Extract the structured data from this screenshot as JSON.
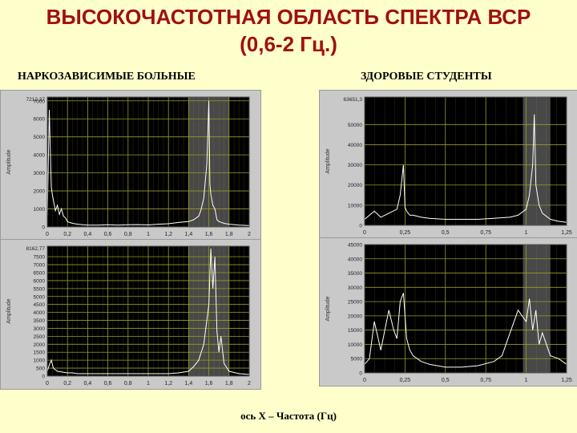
{
  "title": {
    "line1": "ВЫСОКОЧАСТОТНАЯ ОБЛАСТЬ СПЕКТРА ВСР",
    "line2": "(0,6-2 Гц.)"
  },
  "left_heading": "НАРКОЗАВИСИМЫЕ БОЛЬНЫЕ",
  "right_heading": "ЗДОРОВЫЕ СТУДЕНТЫ",
  "footer": "ось X – Частота (Гц)",
  "colors": {
    "title": "#a01010",
    "background": "#ffffcc",
    "plot_bg": "#000000",
    "grid": "#9a9a2a",
    "line": "#ffffff",
    "highlight": "#555555"
  },
  "chart_data": [
    {
      "type": "line",
      "ylabel": "Amplitude",
      "top_label": "7212,37",
      "xlim": [
        0,
        2
      ],
      "ylim": [
        0,
        7212.37
      ],
      "xticks": [
        "0",
        "0,2",
        "0,4",
        "0,6",
        "0,8",
        "1",
        "1,2",
        "1,4",
        "1,6",
        "1,8",
        "2"
      ],
      "yticks": [
        "0",
        "1000",
        "2000",
        "3000",
        "4000",
        "5000",
        "6000",
        "7000"
      ],
      "ytick_values": [
        0,
        1000,
        2000,
        3000,
        4000,
        5000,
        6000,
        7000
      ],
      "highlight": [
        1.4,
        1.8
      ],
      "series": [
        {
          "x": [
            0,
            0.02,
            0.04,
            0.05,
            0.06,
            0.08,
            0.1,
            0.12,
            0.14,
            0.16,
            0.18,
            0.2,
            0.22,
            0.25,
            0.3,
            0.35,
            0.4,
            0.5,
            0.6,
            0.7,
            0.8,
            0.9,
            1.0,
            1.1,
            1.2,
            1.3,
            1.4,
            1.45,
            1.5,
            1.52,
            1.55,
            1.58,
            1.6,
            1.61,
            1.62,
            1.64,
            1.66,
            1.68,
            1.7,
            1.75,
            1.8,
            1.9,
            2.0
          ],
          "y": [
            500,
            6500,
            2200,
            1800,
            1500,
            900,
            1200,
            700,
            1000,
            600,
            500,
            300,
            250,
            200,
            150,
            120,
            100,
            100,
            120,
            100,
            120,
            130,
            110,
            150,
            180,
            250,
            300,
            400,
            600,
            900,
            1600,
            3500,
            7000,
            2400,
            1800,
            1200,
            1000,
            400,
            300,
            200,
            150,
            100,
            80
          ]
        }
      ]
    },
    {
      "type": "line",
      "ylabel": "Amplitude",
      "top_label": "8162,77",
      "xlim": [
        0,
        2
      ],
      "ylim": [
        0,
        8162.77
      ],
      "xticks": [
        "0",
        "0,2",
        "0,4",
        "0,6",
        "0,8",
        "1",
        "1,2",
        "1,4",
        "1,6",
        "1,8",
        "2"
      ],
      "yticks": [
        "0",
        "500",
        "1000",
        "1500",
        "2000",
        "2500",
        "3000",
        "3500",
        "4000",
        "4500",
        "5000",
        "5500",
        "6000",
        "6500",
        "7000",
        "7500"
      ],
      "ytick_values": [
        0,
        500,
        1000,
        1500,
        2000,
        2500,
        3000,
        3500,
        4000,
        4500,
        5000,
        5500,
        6000,
        6500,
        7000,
        7500
      ],
      "highlight": [
        1.4,
        1.8
      ],
      "series": [
        {
          "x": [
            0,
            0.02,
            0.04,
            0.06,
            0.08,
            0.1,
            0.15,
            0.2,
            0.25,
            0.3,
            0.4,
            0.5,
            0.6,
            0.7,
            0.8,
            0.9,
            1.0,
            1.1,
            1.2,
            1.3,
            1.4,
            1.45,
            1.5,
            1.55,
            1.58,
            1.6,
            1.62,
            1.64,
            1.66,
            1.68,
            1.7,
            1.72,
            1.75,
            1.8,
            1.9,
            2.0
          ],
          "y": [
            300,
            700,
            1000,
            500,
            400,
            300,
            250,
            200,
            200,
            150,
            150,
            150,
            150,
            150,
            150,
            150,
            150,
            150,
            150,
            200,
            300,
            600,
            1000,
            2000,
            3500,
            4500,
            8000,
            5500,
            7500,
            2800,
            1500,
            2500,
            800,
            300,
            150,
            100
          ]
        }
      ]
    },
    {
      "type": "line",
      "ylabel": "Amplitude",
      "top_label": "63651,3",
      "xlim": [
        0,
        1.25
      ],
      "ylim": [
        0,
        63651.3
      ],
      "xticks": [
        "0",
        "0,25",
        "0,5",
        "0,75",
        "1",
        "1,25"
      ],
      "yticks": [
        "0",
        "10000",
        "20000",
        "30000",
        "40000",
        "50000"
      ],
      "ytick_values": [
        0,
        10000,
        20000,
        30000,
        40000,
        50000
      ],
      "highlight": [
        0.98,
        1.15
      ],
      "series": [
        {
          "x": [
            0,
            0.03,
            0.06,
            0.1,
            0.15,
            0.2,
            0.22,
            0.24,
            0.25,
            0.26,
            0.28,
            0.3,
            0.35,
            0.4,
            0.5,
            0.6,
            0.7,
            0.8,
            0.9,
            0.95,
            1.0,
            1.02,
            1.04,
            1.05,
            1.06,
            1.08,
            1.1,
            1.15,
            1.2,
            1.25
          ],
          "y": [
            3000,
            5000,
            7000,
            4000,
            6000,
            8000,
            15000,
            30000,
            9000,
            7000,
            5000,
            5000,
            4000,
            3500,
            3000,
            3000,
            3000,
            3500,
            4000,
            5000,
            8000,
            15000,
            30000,
            55000,
            20000,
            10000,
            6000,
            3000,
            2000,
            1500
          ]
        }
      ]
    },
    {
      "type": "line",
      "ylabel": "Amplitude",
      "top_label": "",
      "xlim": [
        0,
        1.25
      ],
      "ylim": [
        0,
        45000
      ],
      "xticks": [
        "0",
        "0,25",
        "0,5",
        "0,75",
        "1",
        "1,25"
      ],
      "yticks": [
        "0",
        "5000",
        "10000",
        "15000",
        "20000",
        "25000",
        "30000",
        "35000",
        "40000",
        "45000"
      ],
      "ytick_values": [
        0,
        5000,
        10000,
        15000,
        20000,
        25000,
        30000,
        35000,
        40000,
        45000
      ],
      "highlight": [
        0.98,
        1.15
      ],
      "series": [
        {
          "x": [
            0,
            0.03,
            0.06,
            0.1,
            0.15,
            0.18,
            0.2,
            0.22,
            0.24,
            0.26,
            0.28,
            0.3,
            0.35,
            0.4,
            0.5,
            0.6,
            0.7,
            0.8,
            0.85,
            0.9,
            0.95,
            1.0,
            1.02,
            1.04,
            1.06,
            1.08,
            1.1,
            1.15,
            1.2,
            1.25
          ],
          "y": [
            3000,
            5000,
            18000,
            8000,
            22000,
            15000,
            12000,
            25000,
            28000,
            12000,
            8000,
            6000,
            4000,
            3000,
            2000,
            2000,
            2500,
            4000,
            6000,
            14000,
            22000,
            18000,
            26000,
            15000,
            22000,
            10000,
            14000,
            6000,
            5000,
            3000
          ]
        }
      ]
    }
  ]
}
